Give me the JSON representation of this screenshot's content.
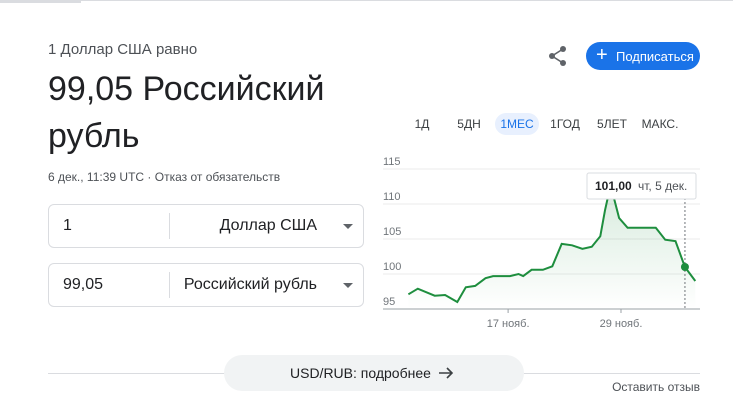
{
  "header": {
    "subtitle": "1 Доллар США равно",
    "value": "99,05 Российский рубль",
    "timestamp": "6 дек., 11:39 UTC · Отказ от обязательств"
  },
  "subscribe": "Подписаться",
  "converter": {
    "rows": [
      {
        "amount": "1",
        "currency": "Доллар США"
      },
      {
        "amount": "99,05",
        "currency": "Российский рубль"
      }
    ]
  },
  "ranges": {
    "items": [
      "1Д",
      "5ДН",
      "1МЕС",
      "1ГОД",
      "5ЛЕТ",
      "МАКС."
    ],
    "selected": 2
  },
  "chart_data": {
    "type": "line",
    "color": "#1e8e3e",
    "x": [
      6.4,
      7.4,
      9.2,
      10.3,
      11.6,
      12.5,
      13.5,
      14.6,
      15.4,
      17.2,
      18.1,
      18.6,
      19.5,
      20.7,
      21.7,
      22.7,
      23.8,
      24.9,
      25.9,
      26.8,
      27.3,
      27.9,
      28.8,
      29.7,
      31.0,
      32.7,
      33.7,
      34.8,
      35.8,
      36.9
    ],
    "values": [
      97.1,
      97.9,
      96.9,
      97.0,
      96.0,
      98.1,
      98.3,
      99.4,
      99.7,
      99.7,
      100.0,
      99.7,
      100.6,
      100.6,
      101.1,
      104.3,
      104.1,
      103.6,
      103.9,
      105.4,
      109.1,
      112.7,
      108.0,
      106.6,
      106.6,
      106.6,
      104.9,
      104.7,
      101.0,
      99.0
    ],
    "xlim": [
      3.7,
      37.4
    ],
    "ylim": [
      95,
      115
    ],
    "xticks": [
      {
        "value": 17,
        "label": "17 нояб."
      },
      {
        "value": 29,
        "label": "29 нояб."
      }
    ],
    "yticks": [
      95,
      100,
      105,
      110,
      115
    ],
    "grid": true,
    "tooltip": {
      "index": 28,
      "value_label": "101,00",
      "date": "чт, 5 дек."
    }
  },
  "footer": {
    "details": "USD/RUB: подробнее",
    "feedback": "Оставить отзыв"
  }
}
